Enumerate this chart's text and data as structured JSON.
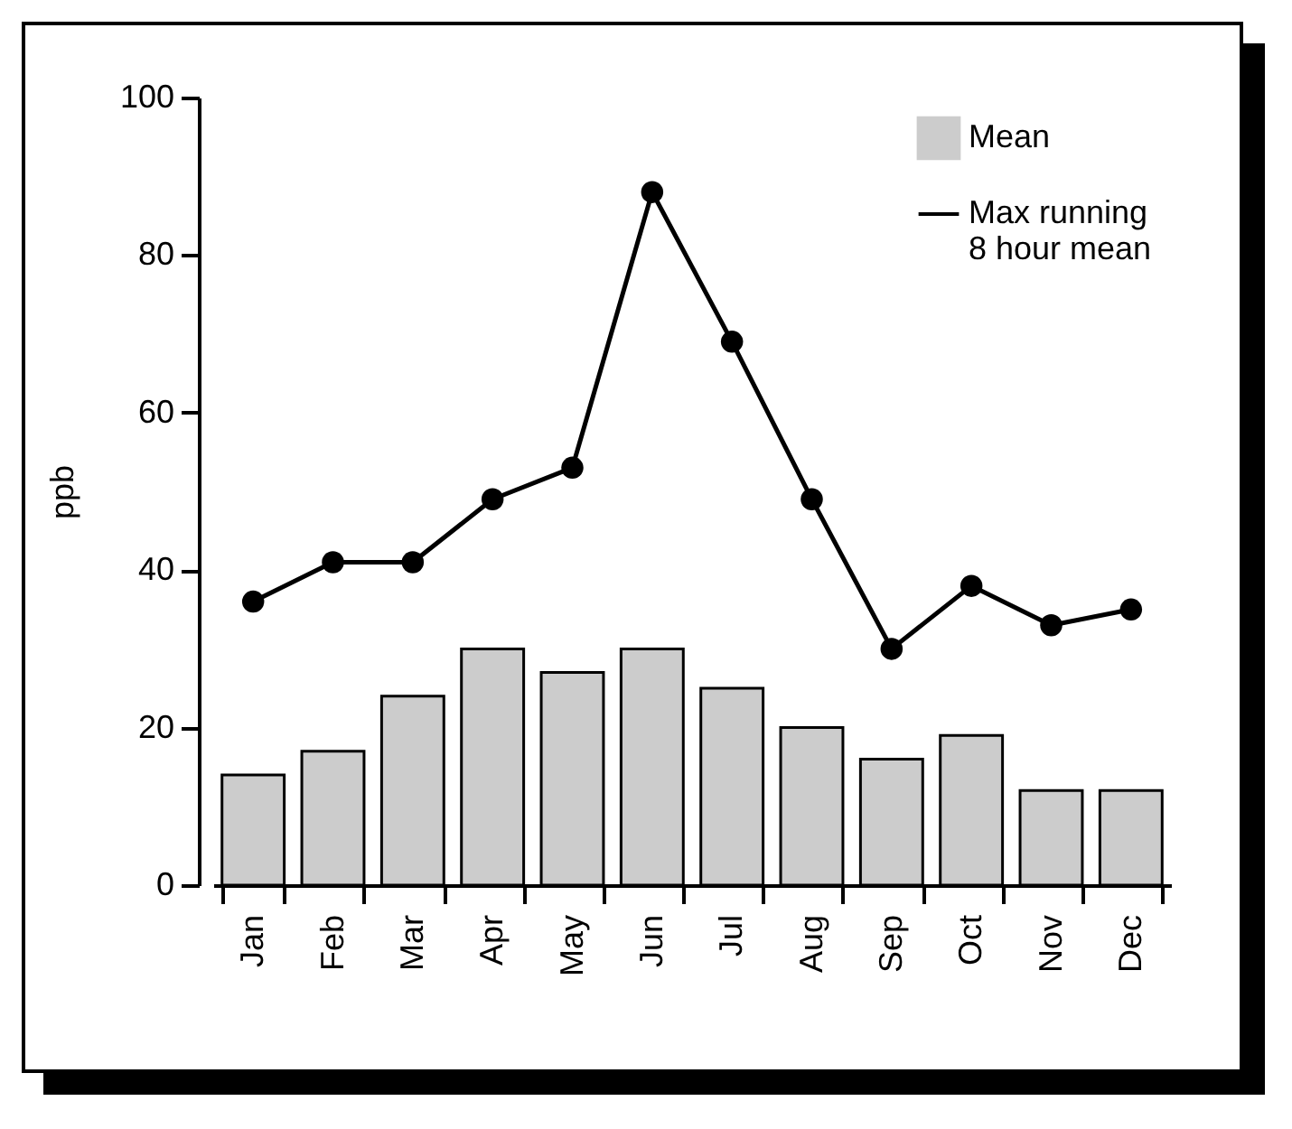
{
  "chart_data": {
    "type": "bar",
    "ylabel": "ppb",
    "categories": [
      "Jan",
      "Feb",
      "Mar",
      "Apr",
      "May",
      "Jun",
      "Jul",
      "Aug",
      "Sep",
      "Oct",
      "Nov",
      "Dec"
    ],
    "series": [
      {
        "name": "Mean",
        "color": "#cccccc",
        "values": [
          14,
          17,
          24,
          30,
          27,
          30,
          25,
          20,
          16,
          19,
          12,
          12
        ]
      },
      {
        "name": "Max running\n8 hour mean",
        "type": "line",
        "color": "#000000",
        "marker": "circle",
        "values": [
          36,
          41,
          41,
          49,
          53,
          88,
          69,
          49,
          30,
          38,
          33,
          35
        ]
      }
    ],
    "ylim": [
      0,
      100
    ],
    "yticks": [
      0,
      20,
      40,
      60,
      80,
      100
    ],
    "grid": false,
    "legend": "top right"
  }
}
